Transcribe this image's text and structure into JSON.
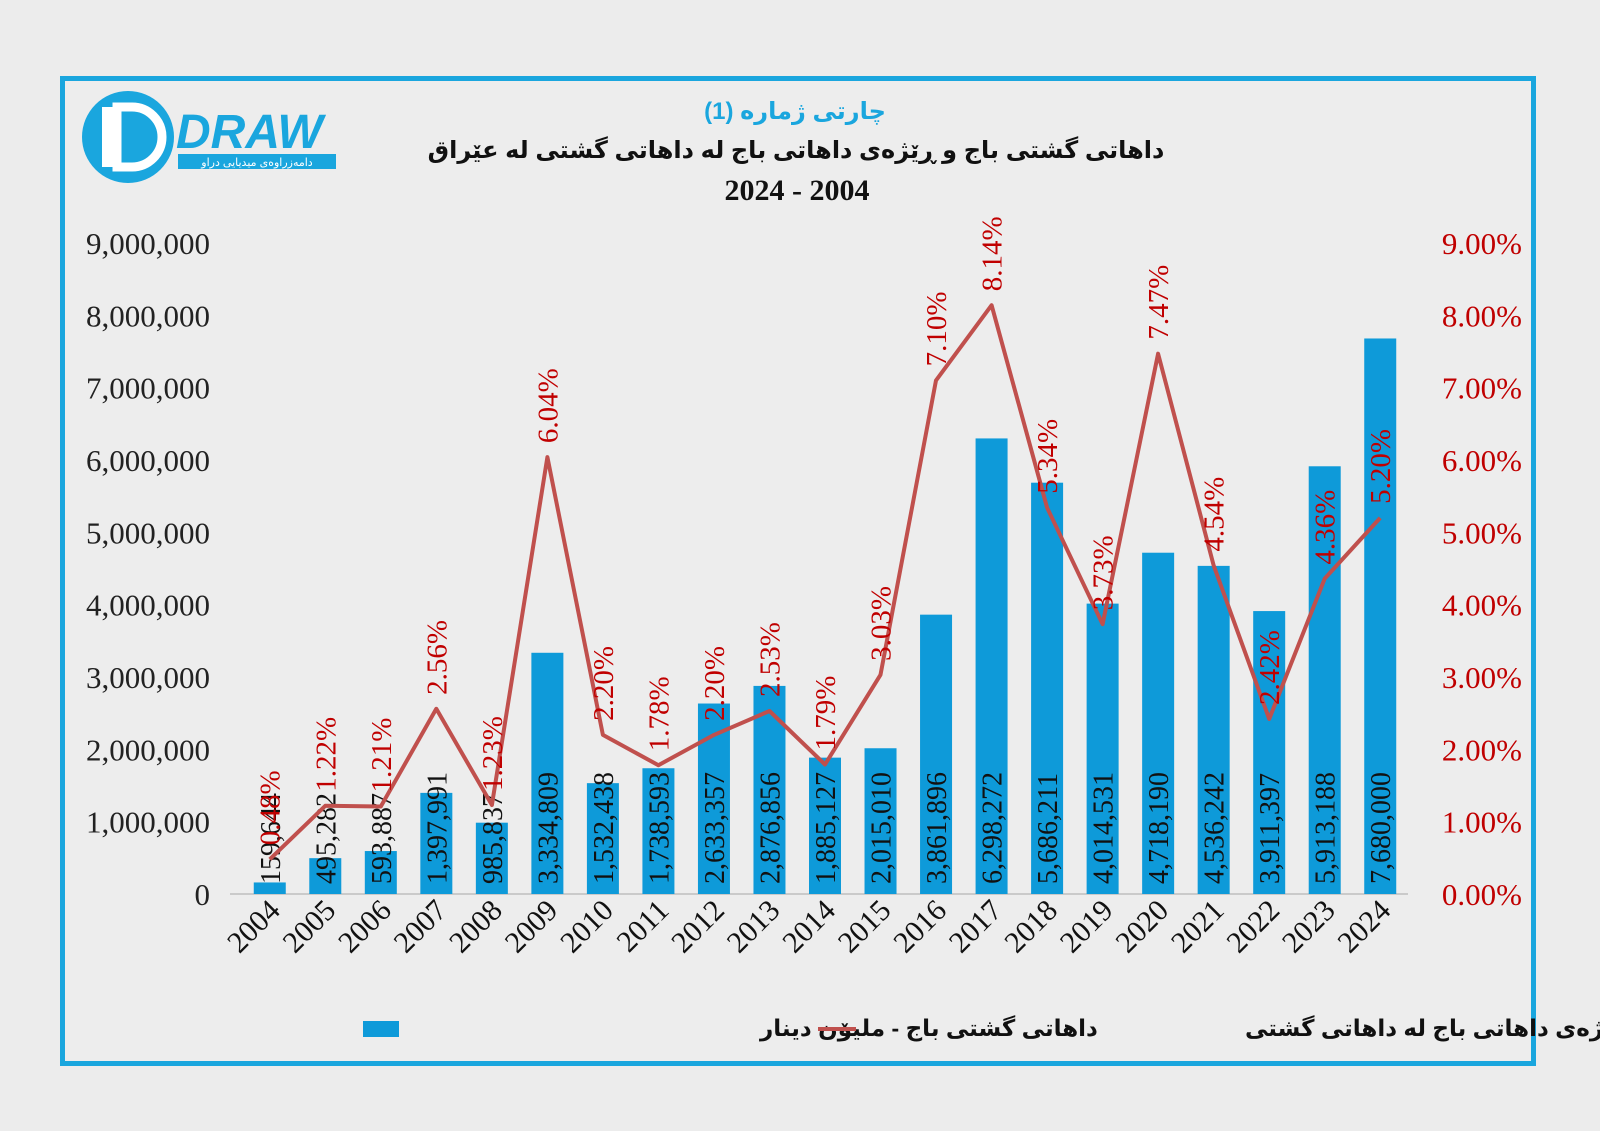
{
  "logo": {
    "brand": "DRAW",
    "tagline": "دامەزراوەی میدیایی دراو"
  },
  "chart_data": {
    "type": "bar",
    "chart_number": "چارتی ژمارە (1)",
    "title": "داهاتی گشتی باج  و ڕێژەی داهاتی باج لە داهاتی گشتی لە عێراق",
    "subtitle": "2024 - 2004",
    "categories": [
      "2004",
      "2005",
      "2006",
      "2007",
      "2008",
      "2009",
      "2010",
      "2011",
      "2012",
      "2013",
      "2014",
      "2015",
      "2016",
      "2017",
      "2018",
      "2019",
      "2020",
      "2021",
      "2022",
      "2023",
      "2024"
    ],
    "series": [
      {
        "name": "داهاتی گشتی باج -  ملیۆن دینار",
        "type": "bar",
        "axis": "left",
        "color": "#0e9ad9",
        "values": [
          159644,
          495282,
          593887,
          1397991,
          985837,
          3334809,
          1532438,
          1738593,
          2633357,
          2876856,
          1885127,
          2015010,
          3861896,
          6298272,
          5686211,
          4014531,
          4718190,
          4536242,
          3911397,
          5913188,
          7680000
        ],
        "labels": [
          "159,644",
          "495,282",
          "593,887",
          "1,397,991",
          "985,837",
          "3,334,809",
          "1,532,438",
          "1,738,593",
          "2,633,357",
          "2,876,856",
          "1,885,127",
          "2,015,010",
          "3,861,896",
          "6,298,272",
          "5,686,211",
          "4,014,531",
          "4,718,190",
          "4,536,242",
          "3,911,397",
          "5,913,188",
          "7,680,000"
        ]
      },
      {
        "name": "ڕێژەی داهاتی باج لە داهاتی گشتی",
        "type": "line",
        "axis": "right",
        "color": "#c0504d",
        "values": [
          0.48,
          1.22,
          1.21,
          2.56,
          1.23,
          6.04,
          2.2,
          1.78,
          2.2,
          2.53,
          1.79,
          3.03,
          7.1,
          8.14,
          5.34,
          3.73,
          7.47,
          4.54,
          2.42,
          4.36,
          5.2
        ],
        "labels": [
          "0.48%",
          "1.22%",
          "1.21%",
          "2.56%",
          "1.23%",
          "6.04%",
          "2.20%",
          "1.78%",
          "2.20%",
          "2.53%",
          "1.79%",
          "3.03%",
          "7.10%",
          "8.14%",
          "5.34%",
          "3.73%",
          "7.47%",
          "4.54%",
          "2.42%",
          "4.36%",
          "5.20%"
        ]
      }
    ],
    "y_left": {
      "ylim": [
        0,
        9000000
      ],
      "ticks": [
        "0",
        "1,000,000",
        "2,000,000",
        "3,000,000",
        "4,000,000",
        "5,000,000",
        "6,000,000",
        "7,000,000",
        "8,000,000",
        "9,000,000"
      ]
    },
    "y_right": {
      "ylim": [
        0,
        9
      ],
      "ticks": [
        "0.00%",
        "1.00%",
        "2.00%",
        "3.00%",
        "4.00%",
        "5.00%",
        "6.00%",
        "7.00%",
        "8.00%",
        "9.00%"
      ]
    },
    "legend": {
      "position": "bottom",
      "bar_label": "داهاتی گشتی باج -  ملیۆن دینار",
      "line_label": "ڕێژەی داهاتی باج لە داهاتی گشتی"
    },
    "colors": {
      "frame": "#1aa6de",
      "title_accent": "#1aa6de",
      "axis_right_text": "#c00000"
    }
  }
}
